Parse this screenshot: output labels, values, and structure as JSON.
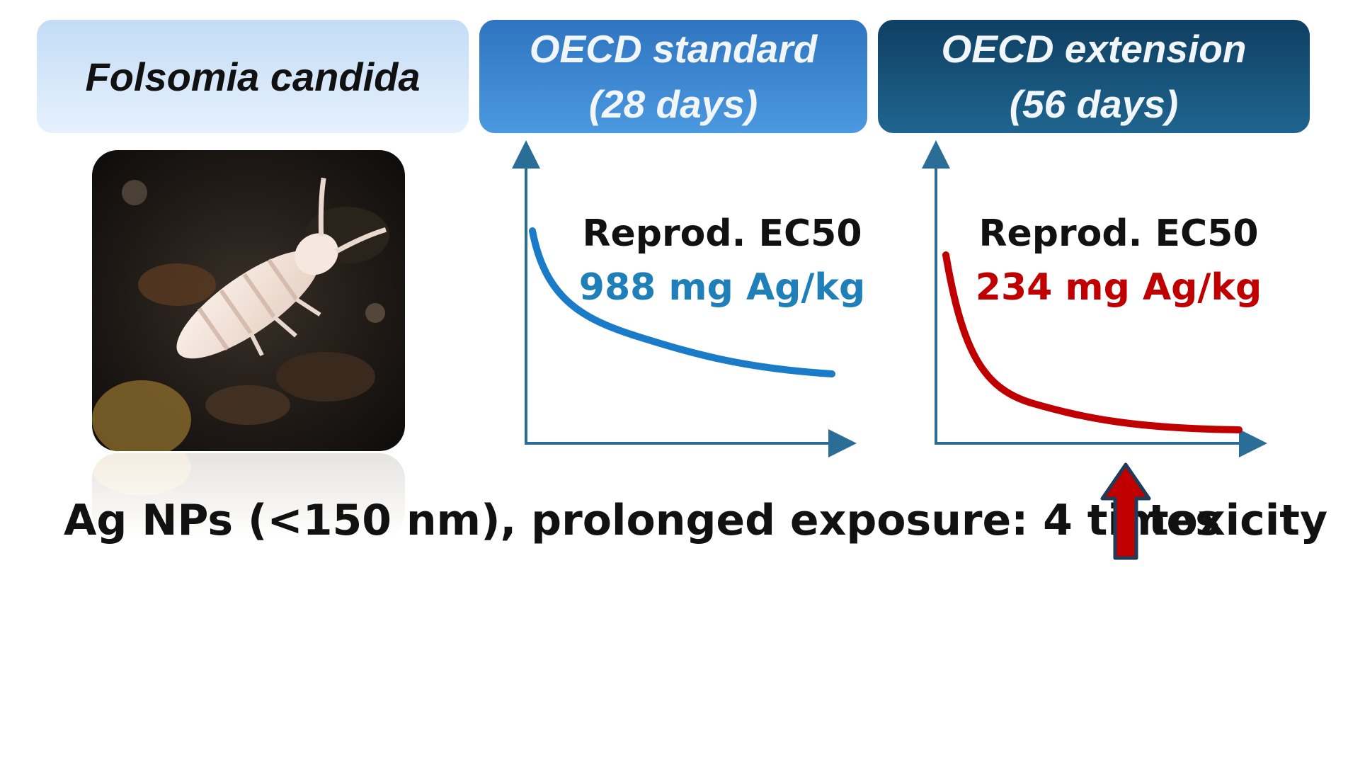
{
  "header": {
    "species": "Folsomia candida",
    "standard": {
      "line1": "OECD standard",
      "line2": "(28 days)"
    },
    "extension": {
      "line1": "OECD extension",
      "line2": "(56 days)"
    }
  },
  "photo": {
    "subject": "springtail-on-soil"
  },
  "charts": [
    {
      "label": "Reprod. EC50",
      "value": "988 mg Ag/kg",
      "color": "#1a7cc9",
      "value_color": "#1f7fb8"
    },
    {
      "label": "Reprod. EC50",
      "value": "234 mg Ag/kg",
      "color": "#c00000",
      "value_color": "#c00000"
    }
  ],
  "axis_color": "#2a6e98",
  "statement": {
    "text": "Ag NPs (<150 nm), prolonged exposure: 4 times",
    "suffix": "toxicity",
    "arrow": "up-arrow-icon",
    "arrow_color": "#c00000"
  }
}
